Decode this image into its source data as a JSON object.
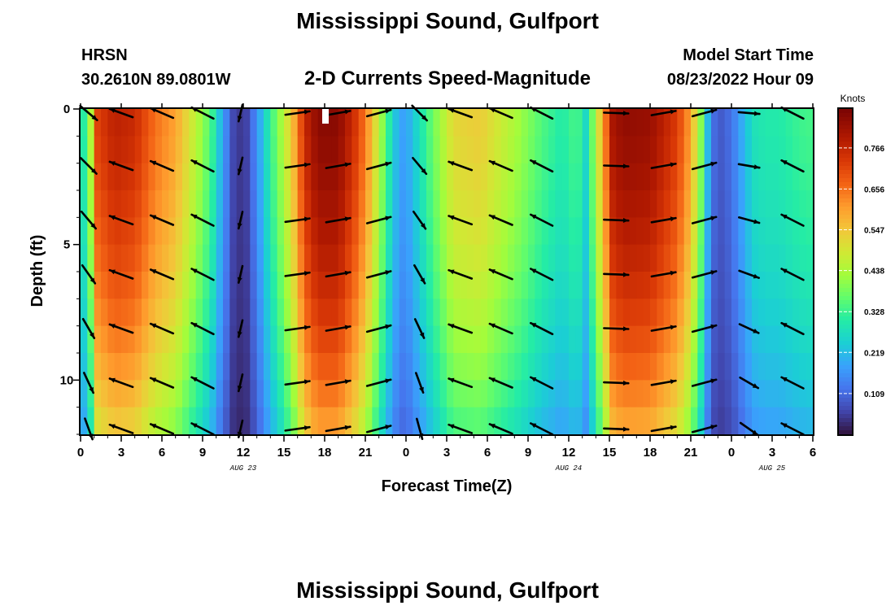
{
  "header": {
    "title": "Mississippi Sound, Gulfport",
    "station": "HRSN",
    "coords": "30.2610N  89.0801W",
    "chart_subtitle": "2-D Currents Speed-Magnitude",
    "model_label": "Model Start Time",
    "model_time": "08/23/2022 Hour 09",
    "bottom_title": "Mississippi Sound, Gulfport"
  },
  "colorbar": {
    "unit": "Knots",
    "ticks": [
      "0.766",
      "0.656",
      "0.547",
      "0.438",
      "0.328",
      "0.219",
      "0.109"
    ],
    "tick_values": [
      0.766,
      0.656,
      0.547,
      0.438,
      0.328,
      0.219,
      0.109
    ],
    "range": [
      0.0,
      0.87
    ]
  },
  "colors": {
    "frame": "#000000",
    "arrow": "#000000"
  },
  "chart_data": {
    "type": "heatmap",
    "title": "2-D Currents Speed-Magnitude",
    "xlabel": "Forecast Time(Z)",
    "ylabel": "Depth (ft)",
    "x_hours_range": [
      0,
      54
    ],
    "y_depth_range_ft": [
      0,
      12
    ],
    "x_ticks": [
      {
        "hour": 0,
        "label": "0"
      },
      {
        "hour": 3,
        "label": "3"
      },
      {
        "hour": 6,
        "label": "6"
      },
      {
        "hour": 9,
        "label": "9"
      },
      {
        "hour": 12,
        "label": "12"
      },
      {
        "hour": 15,
        "label": "15"
      },
      {
        "hour": 18,
        "label": "18"
      },
      {
        "hour": 21,
        "label": "21"
      },
      {
        "hour": 24,
        "label": "0"
      },
      {
        "hour": 27,
        "label": "3"
      },
      {
        "hour": 30,
        "label": "6"
      },
      {
        "hour": 33,
        "label": "9"
      },
      {
        "hour": 36,
        "label": "12"
      },
      {
        "hour": 39,
        "label": "15"
      },
      {
        "hour": 42,
        "label": "18"
      },
      {
        "hour": 45,
        "label": "21"
      },
      {
        "hour": 48,
        "label": "0"
      },
      {
        "hour": 51,
        "label": "3"
      },
      {
        "hour": 54,
        "label": "6"
      }
    ],
    "y_ticks": [
      {
        "depth": 0,
        "label": "0"
      },
      {
        "depth": 5,
        "label": "5"
      },
      {
        "depth": 10,
        "label": "10"
      }
    ],
    "date_labels": [
      {
        "hour": 12,
        "label": "AUG 23"
      },
      {
        "hour": 36,
        "label": "AUG 24"
      },
      {
        "hour": 51,
        "label": "AUG 25"
      }
    ],
    "speed_profile": {
      "hours": [
        0,
        0.7,
        1.2,
        2.5,
        4,
        5.5,
        7,
        8.5,
        9.6,
        10.4,
        11.3,
        12.1,
        13,
        14,
        14.8,
        15.6,
        16.5,
        17.5,
        19,
        20.5,
        21.3,
        22.2,
        23,
        23.6,
        24.2,
        25,
        26,
        27.5,
        29.5,
        31,
        32.5,
        34,
        35.5,
        36.6,
        37.3,
        38,
        39.3,
        40.3,
        42,
        44,
        45,
        45.7,
        46.3,
        46.8,
        47.3,
        48,
        48.8,
        49.6,
        50.5,
        51.5,
        53,
        54
      ],
      "surface_knots": [
        0.25,
        0.42,
        0.72,
        0.78,
        0.76,
        0.66,
        0.6,
        0.46,
        0.35,
        0.2,
        0.06,
        0.04,
        0.16,
        0.32,
        0.43,
        0.55,
        0.76,
        0.85,
        0.85,
        0.72,
        0.6,
        0.42,
        0.26,
        0.18,
        0.2,
        0.28,
        0.38,
        0.52,
        0.54,
        0.48,
        0.42,
        0.35,
        0.3,
        0.35,
        0.26,
        0.45,
        0.82,
        0.84,
        0.83,
        0.73,
        0.6,
        0.42,
        0.2,
        0.1,
        0.09,
        0.12,
        0.2,
        0.28,
        0.3,
        0.3,
        0.33,
        0.34
      ],
      "depth_factor_ft": [
        0,
        2,
        4,
        6,
        8,
        10,
        12
      ],
      "depth_factor": [
        1.0,
        0.97,
        0.92,
        0.86,
        0.78,
        0.68,
        0.55
      ]
    },
    "arrows": {
      "depths_ft": [
        0.15,
        2.1,
        4.1,
        6.1,
        8.1,
        10.1,
        11.8
      ],
      "columns": [
        {
          "hour": 0.6,
          "angle_deg": 40,
          "mag": 0.95,
          "varying": true
        },
        {
          "hour": 3.0,
          "angle_deg": 200,
          "mag": 1.0
        },
        {
          "hour": 6.0,
          "angle_deg": 203,
          "mag": 1.0
        },
        {
          "hour": 9.0,
          "angle_deg": 207,
          "mag": 1.0
        },
        {
          "hour": 11.8,
          "angle_deg": 103,
          "mag": 0.7
        },
        {
          "hour": 16.0,
          "angle_deg": -8,
          "mag": 1.0
        },
        {
          "hour": 19.0,
          "angle_deg": -10,
          "mag": 1.0
        },
        {
          "hour": 22.0,
          "angle_deg": -15,
          "mag": 1.0
        },
        {
          "hour": 25.0,
          "angle_deg": 45,
          "mag": 0.9,
          "varying": true
        },
        {
          "hour": 28.0,
          "angle_deg": 200,
          "mag": 1.0
        },
        {
          "hour": 31.0,
          "angle_deg": 203,
          "mag": 1.0
        },
        {
          "hour": 34.0,
          "angle_deg": 207,
          "mag": 1.0
        },
        {
          "hour": 39.5,
          "angle_deg": 2,
          "mag": 1.0
        },
        {
          "hour": 43.0,
          "angle_deg": -10,
          "mag": 1.0
        },
        {
          "hour": 46.0,
          "angle_deg": -15,
          "mag": 1.0
        },
        {
          "hour": 49.3,
          "angle_deg": 5,
          "mag": 0.9,
          "varying": true
        },
        {
          "hour": 52.5,
          "angle_deg": 207,
          "mag": 1.0
        }
      ]
    }
  }
}
